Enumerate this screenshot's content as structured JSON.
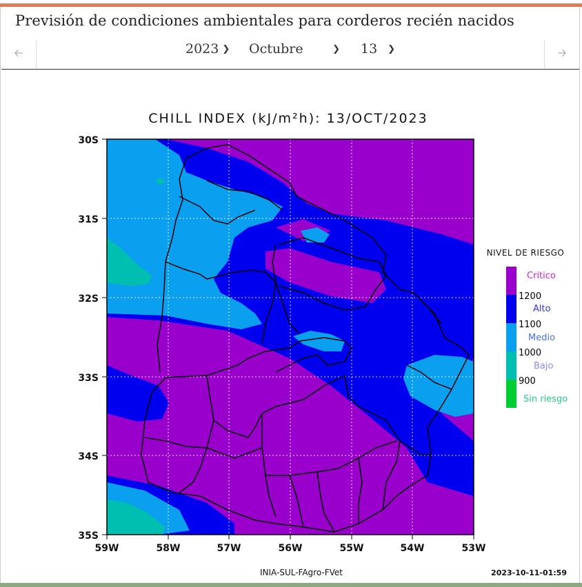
{
  "page": {
    "title": "Previsión de condiciones ambientales para corderos recién nacidos"
  },
  "nav": {
    "prev_icon": "arrow-left-icon",
    "next_icon": "arrow-right-icon",
    "year": "2023",
    "month": "Octubre",
    "day": "13"
  },
  "map": {
    "title": "CHILL INDEX (kJ/m²h): 13/OCT/2023",
    "lat_labels": [
      "30S",
      "31S",
      "32S",
      "33S",
      "34S",
      "35S"
    ],
    "lon_labels": [
      "59W",
      "58W",
      "57W",
      "56W",
      "55W",
      "54W",
      "53W"
    ],
    "footer_source": "INIA-SUL-FAgro-FVet",
    "footer_timestamp": "2023-10-11-01:59"
  },
  "legend": {
    "title": "NIVEL DE RIESGO",
    "levels": [
      {
        "label": "Critico",
        "color": "#9900cc"
      },
      {
        "label": "Alto",
        "color": "#0000ee"
      },
      {
        "label": "Medio",
        "color": "#0b9ff0"
      },
      {
        "label": "Bajo",
        "color": "#00bfb0"
      },
      {
        "label": "Sin riesgo",
        "color": "#00cc33"
      }
    ],
    "thresholds": [
      "1200",
      "1100",
      "1000",
      "900"
    ]
  }
}
